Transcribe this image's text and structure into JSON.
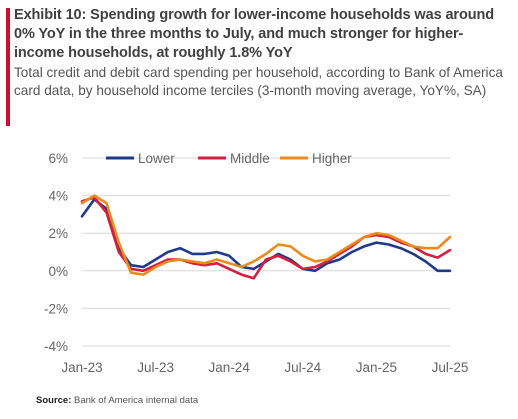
{
  "header": {
    "title": "Exhibit 10: Spending growth for lower-income households was around 0% YoY in the three months to July, and much stronger for higher-income households, at roughly 1.8% YoY",
    "subtitle": "Total credit and debit card spending per household, according to Bank of America card data, by household income terciles (3-month moving average, YoY%, SA)"
  },
  "footer": {
    "source_label": "Source:",
    "source_text": "Bank of America internal data"
  },
  "colors": {
    "accent": "#c8102e",
    "Lower": "#1f3a8a",
    "Middle": "#d81e3f",
    "Higher": "#ec8a1c"
  },
  "chart_data": {
    "type": "line",
    "x": [
      "Jan-23",
      "Feb-23",
      "Mar-23",
      "Apr-23",
      "May-23",
      "Jun-23",
      "Jul-23",
      "Aug-23",
      "Sep-23",
      "Oct-23",
      "Nov-23",
      "Dec-23",
      "Jan-24",
      "Feb-24",
      "Mar-24",
      "Apr-24",
      "May-24",
      "Jun-24",
      "Jul-24",
      "Aug-24",
      "Sep-24",
      "Oct-24",
      "Nov-24",
      "Dec-24",
      "Jan-25",
      "Feb-25",
      "Mar-25",
      "Apr-25",
      "May-25",
      "Jun-25",
      "Jul-25"
    ],
    "x_ticks": [
      "Jan-23",
      "Jul-23",
      "Jan-24",
      "Jul-24",
      "Jan-25",
      "Jul-25"
    ],
    "y_ticks": [
      "6%",
      "4%",
      "2%",
      "0%",
      "-2%",
      "-4%"
    ],
    "ylim": [
      -4,
      6
    ],
    "grid": true,
    "legend": "top",
    "series": [
      {
        "name": "Lower",
        "values": [
          2.9,
          3.8,
          3.3,
          1.2,
          0.3,
          0.2,
          0.6,
          1.0,
          1.2,
          0.9,
          0.9,
          1.0,
          0.8,
          0.2,
          0.1,
          0.5,
          0.9,
          0.6,
          0.1,
          0.0,
          0.4,
          0.6,
          1.0,
          1.3,
          1.5,
          1.4,
          1.2,
          0.9,
          0.5,
          0.0,
          0.0
        ]
      },
      {
        "name": "Middle",
        "values": [
          3.7,
          3.9,
          3.1,
          1.0,
          0.1,
          0.0,
          0.3,
          0.6,
          0.6,
          0.4,
          0.3,
          0.4,
          0.1,
          -0.2,
          -0.4,
          0.6,
          0.8,
          0.5,
          0.1,
          0.2,
          0.5,
          0.9,
          1.3,
          1.8,
          1.9,
          1.8,
          1.5,
          1.3,
          0.9,
          0.7,
          1.1
        ]
      },
      {
        "name": "Higher",
        "values": [
          3.6,
          4.0,
          3.6,
          1.5,
          -0.1,
          -0.2,
          0.2,
          0.5,
          0.6,
          0.5,
          0.4,
          0.6,
          0.4,
          0.2,
          0.5,
          0.9,
          1.4,
          1.3,
          0.8,
          0.5,
          0.6,
          1.0,
          1.4,
          1.8,
          2.0,
          1.9,
          1.6,
          1.3,
          1.2,
          1.2,
          1.8
        ]
      }
    ]
  }
}
